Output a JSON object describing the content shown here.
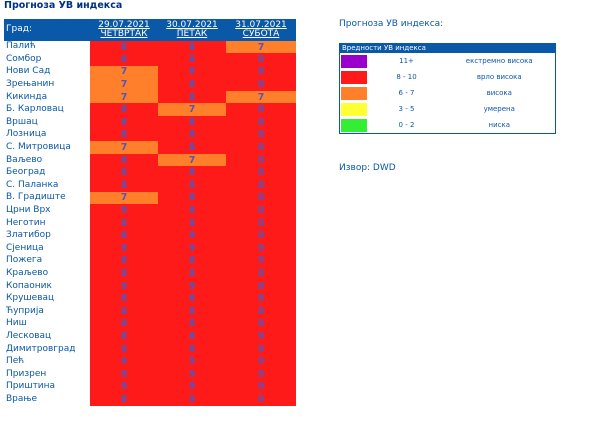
{
  "page": {
    "title": "Прогноза УВ индекса"
  },
  "table": {
    "city_header": "Град:",
    "days": [
      {
        "date": "29.07.2021",
        "day": "ЧЕТВРТАК"
      },
      {
        "date": "30.07.2021",
        "day": "ПЕТАК"
      },
      {
        "date": "31.07.2021",
        "day": "СУБОТА"
      }
    ],
    "rows": [
      {
        "city": "Палић",
        "values": [
          "8",
          "8",
          "7"
        ]
      },
      {
        "city": "Сомбор",
        "values": [
          "8",
          "8",
          "8"
        ]
      },
      {
        "city": "Нови Сад",
        "values": [
          "7",
          "8",
          "8"
        ]
      },
      {
        "city": "Зрењанин",
        "values": [
          "7",
          "8",
          "8"
        ]
      },
      {
        "city": "Кикинда",
        "values": [
          "7",
          "8",
          "7"
        ]
      },
      {
        "city": "Б. Карловац",
        "values": [
          "8",
          "7",
          "8"
        ]
      },
      {
        "city": "Вршац",
        "values": [
          "8",
          "8",
          "8"
        ]
      },
      {
        "city": "Лозница",
        "values": [
          "8",
          "8",
          "8"
        ]
      },
      {
        "city": "С. Митровица",
        "values": [
          "7",
          "8",
          "8"
        ]
      },
      {
        "city": "Ваљево",
        "values": [
          "8",
          "7",
          "8"
        ]
      },
      {
        "city": "Београд",
        "values": [
          "8",
          "8",
          "8"
        ]
      },
      {
        "city": "С. Паланка",
        "values": [
          "8",
          "8",
          "8"
        ]
      },
      {
        "city": "В. Градиште",
        "values": [
          "7",
          "8",
          "8"
        ]
      },
      {
        "city": "Црни Врх",
        "values": [
          "9",
          "8",
          "8"
        ]
      },
      {
        "city": "Неготин",
        "values": [
          "8",
          "8",
          "8"
        ]
      },
      {
        "city": "Златибор",
        "values": [
          "8",
          "9",
          "9"
        ]
      },
      {
        "city": "Сјеница",
        "values": [
          "9",
          "9",
          "9"
        ]
      },
      {
        "city": "Пожега",
        "values": [
          "8",
          "8",
          "9"
        ]
      },
      {
        "city": "Краљево",
        "values": [
          "8",
          "8",
          "8"
        ]
      },
      {
        "city": "Копаоник",
        "values": [
          "9",
          "9",
          "8"
        ]
      },
      {
        "city": "Крушевац",
        "values": [
          "8",
          "8",
          "8"
        ]
      },
      {
        "city": "Ћуприја",
        "values": [
          "8",
          "8",
          "8"
        ]
      },
      {
        "city": "Ниш",
        "values": [
          "8",
          "8",
          "8"
        ]
      },
      {
        "city": "Лесковац",
        "values": [
          "8",
          "8",
          "9"
        ]
      },
      {
        "city": "Димитровград",
        "values": [
          "9",
          "8",
          "9"
        ]
      },
      {
        "city": "Пећ",
        "values": [
          "9",
          "9",
          "9"
        ]
      },
      {
        "city": "Призрен",
        "values": [
          "9",
          "9",
          "9"
        ]
      },
      {
        "city": "Приштина",
        "values": [
          "9",
          "9",
          "9"
        ]
      },
      {
        "city": "Врање",
        "values": [
          "8",
          "9",
          "9"
        ]
      }
    ]
  },
  "legend": {
    "title": "Прогноза УВ индекса:",
    "header": "Вредности УВ индекса",
    "items": [
      {
        "range": "11+",
        "label": "екстремно висока",
        "color": "#9900cc"
      },
      {
        "range": "8 - 10",
        "label": "врло висока",
        "color": "#ff1a1a"
      },
      {
        "range": "6 - 7",
        "label": "висока",
        "color": "#ff7f2a"
      },
      {
        "range": "3 - 5",
        "label": "умерена",
        "color": "#ffff33"
      },
      {
        "range": "0 - 2",
        "label": "ниска",
        "color": "#33ee33"
      }
    ]
  },
  "colors": {
    "level_7": "#ff7f2a",
    "level_8_10": "#ff1a1a",
    "header_blue": "#0a58a8"
  },
  "source": {
    "label": "Извор: DWD"
  }
}
